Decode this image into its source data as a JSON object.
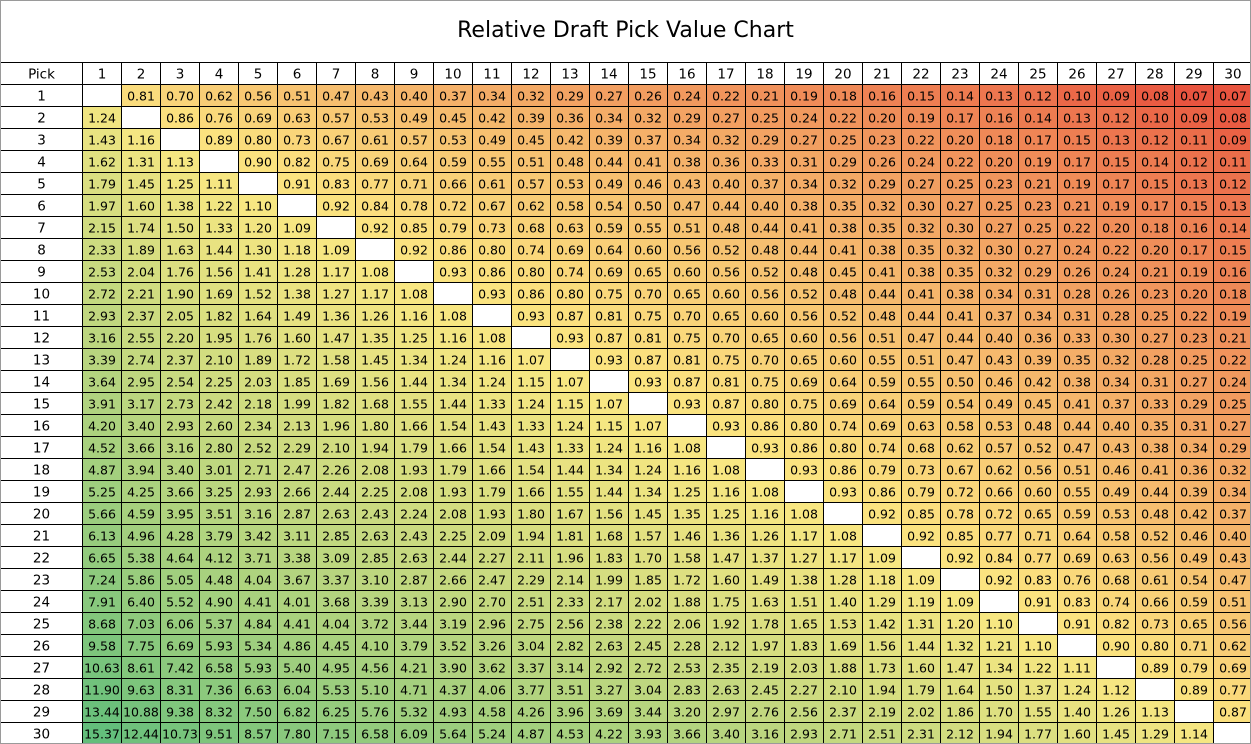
{
  "chart_data": {
    "type": "table",
    "title": "Relative Draft Pick Value Chart",
    "corner_label": "Pick",
    "columns": [
      1,
      2,
      3,
      4,
      5,
      6,
      7,
      8,
      9,
      10,
      11,
      12,
      13,
      14,
      15,
      16,
      17,
      18,
      19,
      20,
      21,
      22,
      23,
      24,
      25,
      26,
      27,
      28,
      29,
      30
    ],
    "rows": [
      1,
      2,
      3,
      4,
      5,
      6,
      7,
      8,
      9,
      10,
      11,
      12,
      13,
      14,
      15,
      16,
      17,
      18,
      19,
      20,
      21,
      22,
      23,
      24,
      25,
      26,
      27,
      28,
      29,
      30
    ],
    "diagonal": "blank",
    "color_scale": {
      "low": "#e8543f",
      "mid": "#fce882",
      "high": "#63be7b",
      "mid_value": 1.0
    },
    "values": [
      [
        null,
        "0.81",
        "0.70",
        "0.62",
        "0.56",
        "0.51",
        "0.47",
        "0.43",
        "0.40",
        "0.37",
        "0.34",
        "0.32",
        "0.29",
        "0.27",
        "0.26",
        "0.24",
        "0.22",
        "0.21",
        "0.19",
        "0.18",
        "0.16",
        "0.15",
        "0.14",
        "0.13",
        "0.12",
        "0.10",
        "0.09",
        "0.08",
        "0.07",
        "0.07"
      ],
      [
        "1.24",
        null,
        "0.86",
        "0.76",
        "0.69",
        "0.63",
        "0.57",
        "0.53",
        "0.49",
        "0.45",
        "0.42",
        "0.39",
        "0.36",
        "0.34",
        "0.32",
        "0.29",
        "0.27",
        "0.25",
        "0.24",
        "0.22",
        "0.20",
        "0.19",
        "0.17",
        "0.16",
        "0.14",
        "0.13",
        "0.12",
        "0.10",
        "0.09",
        "0.08"
      ],
      [
        "1.43",
        "1.16",
        null,
        "0.89",
        "0.80",
        "0.73",
        "0.67",
        "0.61",
        "0.57",
        "0.53",
        "0.49",
        "0.45",
        "0.42",
        "0.39",
        "0.37",
        "0.34",
        "0.32",
        "0.29",
        "0.27",
        "0.25",
        "0.23",
        "0.22",
        "0.20",
        "0.18",
        "0.17",
        "0.15",
        "0.13",
        "0.12",
        "0.11",
        "0.09"
      ],
      [
        "1.62",
        "1.31",
        "1.13",
        null,
        "0.90",
        "0.82",
        "0.75",
        "0.69",
        "0.64",
        "0.59",
        "0.55",
        "0.51",
        "0.48",
        "0.44",
        "0.41",
        "0.38",
        "0.36",
        "0.33",
        "0.31",
        "0.29",
        "0.26",
        "0.24",
        "0.22",
        "0.20",
        "0.19",
        "0.17",
        "0.15",
        "0.14",
        "0.12",
        "0.11"
      ],
      [
        "1.79",
        "1.45",
        "1.25",
        "1.11",
        null,
        "0.91",
        "0.83",
        "0.77",
        "0.71",
        "0.66",
        "0.61",
        "0.57",
        "0.53",
        "0.49",
        "0.46",
        "0.43",
        "0.40",
        "0.37",
        "0.34",
        "0.32",
        "0.29",
        "0.27",
        "0.25",
        "0.23",
        "0.21",
        "0.19",
        "0.17",
        "0.15",
        "0.13",
        "0.12"
      ],
      [
        "1.97",
        "1.60",
        "1.38",
        "1.22",
        "1.10",
        null,
        "0.92",
        "0.84",
        "0.78",
        "0.72",
        "0.67",
        "0.62",
        "0.58",
        "0.54",
        "0.50",
        "0.47",
        "0.44",
        "0.40",
        "0.38",
        "0.35",
        "0.32",
        "0.30",
        "0.27",
        "0.25",
        "0.23",
        "0.21",
        "0.19",
        "0.17",
        "0.15",
        "0.13"
      ],
      [
        "2.15",
        "1.74",
        "1.50",
        "1.33",
        "1.20",
        "1.09",
        null,
        "0.92",
        "0.85",
        "0.79",
        "0.73",
        "0.68",
        "0.63",
        "0.59",
        "0.55",
        "0.51",
        "0.48",
        "0.44",
        "0.41",
        "0.38",
        "0.35",
        "0.32",
        "0.30",
        "0.27",
        "0.25",
        "0.22",
        "0.20",
        "0.18",
        "0.16",
        "0.14"
      ],
      [
        "2.33",
        "1.89",
        "1.63",
        "1.44",
        "1.30",
        "1.18",
        "1.09",
        null,
        "0.92",
        "0.86",
        "0.80",
        "0.74",
        "0.69",
        "0.64",
        "0.60",
        "0.56",
        "0.52",
        "0.48",
        "0.44",
        "0.41",
        "0.38",
        "0.35",
        "0.32",
        "0.30",
        "0.27",
        "0.24",
        "0.22",
        "0.20",
        "0.17",
        "0.15"
      ],
      [
        "2.53",
        "2.04",
        "1.76",
        "1.56",
        "1.41",
        "1.28",
        "1.17",
        "1.08",
        null,
        "0.93",
        "0.86",
        "0.80",
        "0.74",
        "0.69",
        "0.65",
        "0.60",
        "0.56",
        "0.52",
        "0.48",
        "0.45",
        "0.41",
        "0.38",
        "0.35",
        "0.32",
        "0.29",
        "0.26",
        "0.24",
        "0.21",
        "0.19",
        "0.16"
      ],
      [
        "2.72",
        "2.21",
        "1.90",
        "1.69",
        "1.52",
        "1.38",
        "1.27",
        "1.17",
        "1.08",
        null,
        "0.93",
        "0.86",
        "0.80",
        "0.75",
        "0.70",
        "0.65",
        "0.60",
        "0.56",
        "0.52",
        "0.48",
        "0.44",
        "0.41",
        "0.38",
        "0.34",
        "0.31",
        "0.28",
        "0.26",
        "0.23",
        "0.20",
        "0.18"
      ],
      [
        "2.93",
        "2.37",
        "2.05",
        "1.82",
        "1.64",
        "1.49",
        "1.36",
        "1.26",
        "1.16",
        "1.08",
        null,
        "0.93",
        "0.87",
        "0.81",
        "0.75",
        "0.70",
        "0.65",
        "0.60",
        "0.56",
        "0.52",
        "0.48",
        "0.44",
        "0.41",
        "0.37",
        "0.34",
        "0.31",
        "0.28",
        "0.25",
        "0.22",
        "0.19"
      ],
      [
        "3.16",
        "2.55",
        "2.20",
        "1.95",
        "1.76",
        "1.60",
        "1.47",
        "1.35",
        "1.25",
        "1.16",
        "1.08",
        null,
        "0.93",
        "0.87",
        "0.81",
        "0.75",
        "0.70",
        "0.65",
        "0.60",
        "0.56",
        "0.51",
        "0.47",
        "0.44",
        "0.40",
        "0.36",
        "0.33",
        "0.30",
        "0.27",
        "0.23",
        "0.21"
      ],
      [
        "3.39",
        "2.74",
        "2.37",
        "2.10",
        "1.89",
        "1.72",
        "1.58",
        "1.45",
        "1.34",
        "1.24",
        "1.16",
        "1.07",
        null,
        "0.93",
        "0.87",
        "0.81",
        "0.75",
        "0.70",
        "0.65",
        "0.60",
        "0.55",
        "0.51",
        "0.47",
        "0.43",
        "0.39",
        "0.35",
        "0.32",
        "0.28",
        "0.25",
        "0.22"
      ],
      [
        "3.64",
        "2.95",
        "2.54",
        "2.25",
        "2.03",
        "1.85",
        "1.69",
        "1.56",
        "1.44",
        "1.34",
        "1.24",
        "1.15",
        "1.07",
        null,
        "0.93",
        "0.87",
        "0.81",
        "0.75",
        "0.69",
        "0.64",
        "0.59",
        "0.55",
        "0.50",
        "0.46",
        "0.42",
        "0.38",
        "0.34",
        "0.31",
        "0.27",
        "0.24"
      ],
      [
        "3.91",
        "3.17",
        "2.73",
        "2.42",
        "2.18",
        "1.99",
        "1.82",
        "1.68",
        "1.55",
        "1.44",
        "1.33",
        "1.24",
        "1.15",
        "1.07",
        null,
        "0.93",
        "0.87",
        "0.80",
        "0.75",
        "0.69",
        "0.64",
        "0.59",
        "0.54",
        "0.49",
        "0.45",
        "0.41",
        "0.37",
        "0.33",
        "0.29",
        "0.25"
      ],
      [
        "4.20",
        "3.40",
        "2.93",
        "2.60",
        "2.34",
        "2.13",
        "1.96",
        "1.80",
        "1.66",
        "1.54",
        "1.43",
        "1.33",
        "1.24",
        "1.15",
        "1.07",
        null,
        "0.93",
        "0.86",
        "0.80",
        "0.74",
        "0.69",
        "0.63",
        "0.58",
        "0.53",
        "0.48",
        "0.44",
        "0.40",
        "0.35",
        "0.31",
        "0.27"
      ],
      [
        "4.52",
        "3.66",
        "3.16",
        "2.80",
        "2.52",
        "2.29",
        "2.10",
        "1.94",
        "1.79",
        "1.66",
        "1.54",
        "1.43",
        "1.33",
        "1.24",
        "1.16",
        "1.08",
        null,
        "0.93",
        "0.86",
        "0.80",
        "0.74",
        "0.68",
        "0.62",
        "0.57",
        "0.52",
        "0.47",
        "0.43",
        "0.38",
        "0.34",
        "0.29"
      ],
      [
        "4.87",
        "3.94",
        "3.40",
        "3.01",
        "2.71",
        "2.47",
        "2.26",
        "2.08",
        "1.93",
        "1.79",
        "1.66",
        "1.54",
        "1.44",
        "1.34",
        "1.24",
        "1.16",
        "1.08",
        null,
        "0.93",
        "0.86",
        "0.79",
        "0.73",
        "0.67",
        "0.62",
        "0.56",
        "0.51",
        "0.46",
        "0.41",
        "0.36",
        "0.32"
      ],
      [
        "5.25",
        "4.25",
        "3.66",
        "3.25",
        "2.93",
        "2.66",
        "2.44",
        "2.25",
        "2.08",
        "1.93",
        "1.79",
        "1.66",
        "1.55",
        "1.44",
        "1.34",
        "1.25",
        "1.16",
        "1.08",
        null,
        "0.93",
        "0.86",
        "0.79",
        "0.72",
        "0.66",
        "0.60",
        "0.55",
        "0.49",
        "0.44",
        "0.39",
        "0.34"
      ],
      [
        "5.66",
        "4.59",
        "3.95",
        "3.51",
        "3.16",
        "2.87",
        "2.63",
        "2.43",
        "2.24",
        "2.08",
        "1.93",
        "1.80",
        "1.67",
        "1.56",
        "1.45",
        "1.35",
        "1.25",
        "1.16",
        "1.08",
        null,
        "0.92",
        "0.85",
        "0.78",
        "0.72",
        "0.65",
        "0.59",
        "0.53",
        "0.48",
        "0.42",
        "0.37"
      ],
      [
        "6.13",
        "4.96",
        "4.28",
        "3.79",
        "3.42",
        "3.11",
        "2.85",
        "2.63",
        "2.43",
        "2.25",
        "2.09",
        "1.94",
        "1.81",
        "1.68",
        "1.57",
        "1.46",
        "1.36",
        "1.26",
        "1.17",
        "1.08",
        null,
        "0.92",
        "0.85",
        "0.77",
        "0.71",
        "0.64",
        "0.58",
        "0.52",
        "0.46",
        "0.40"
      ],
      [
        "6.65",
        "5.38",
        "4.64",
        "4.12",
        "3.71",
        "3.38",
        "3.09",
        "2.85",
        "2.63",
        "2.44",
        "2.27",
        "2.11",
        "1.96",
        "1.83",
        "1.70",
        "1.58",
        "1.47",
        "1.37",
        "1.27",
        "1.17",
        "1.09",
        null,
        "0.92",
        "0.84",
        "0.77",
        "0.69",
        "0.63",
        "0.56",
        "0.49",
        "0.43"
      ],
      [
        "7.24",
        "5.86",
        "5.05",
        "4.48",
        "4.04",
        "3.67",
        "3.37",
        "3.10",
        "2.87",
        "2.66",
        "2.47",
        "2.29",
        "2.14",
        "1.99",
        "1.85",
        "1.72",
        "1.60",
        "1.49",
        "1.38",
        "1.28",
        "1.18",
        "1.09",
        null,
        "0.92",
        "0.83",
        "0.76",
        "0.68",
        "0.61",
        "0.54",
        "0.47"
      ],
      [
        "7.91",
        "6.40",
        "5.52",
        "4.90",
        "4.41",
        "4.01",
        "3.68",
        "3.39",
        "3.13",
        "2.90",
        "2.70",
        "2.51",
        "2.33",
        "2.17",
        "2.02",
        "1.88",
        "1.75",
        "1.63",
        "1.51",
        "1.40",
        "1.29",
        "1.19",
        "1.09",
        null,
        "0.91",
        "0.83",
        "0.74",
        "0.66",
        "0.59",
        "0.51"
      ],
      [
        "8.68",
        "7.03",
        "6.06",
        "5.37",
        "4.84",
        "4.41",
        "4.04",
        "3.72",
        "3.44",
        "3.19",
        "2.96",
        "2.75",
        "2.56",
        "2.38",
        "2.22",
        "2.06",
        "1.92",
        "1.78",
        "1.65",
        "1.53",
        "1.42",
        "1.31",
        "1.20",
        "1.10",
        null,
        "0.91",
        "0.82",
        "0.73",
        "0.65",
        "0.56"
      ],
      [
        "9.58",
        "7.75",
        "6.69",
        "5.93",
        "5.34",
        "4.86",
        "4.45",
        "4.10",
        "3.79",
        "3.52",
        "3.26",
        "3.04",
        "2.82",
        "2.63",
        "2.45",
        "2.28",
        "2.12",
        "1.97",
        "1.83",
        "1.69",
        "1.56",
        "1.44",
        "1.32",
        "1.21",
        "1.10",
        null,
        "0.90",
        "0.80",
        "0.71",
        "0.62"
      ],
      [
        "10.63",
        "8.61",
        "7.42",
        "6.58",
        "5.93",
        "5.40",
        "4.95",
        "4.56",
        "4.21",
        "3.90",
        "3.62",
        "3.37",
        "3.14",
        "2.92",
        "2.72",
        "2.53",
        "2.35",
        "2.19",
        "2.03",
        "1.88",
        "1.73",
        "1.60",
        "1.47",
        "1.34",
        "1.22",
        "1.11",
        null,
        "0.89",
        "0.79",
        "0.69"
      ],
      [
        "11.90",
        "9.63",
        "8.31",
        "7.36",
        "6.63",
        "6.04",
        "5.53",
        "5.10",
        "4.71",
        "4.37",
        "4.06",
        "3.77",
        "3.51",
        "3.27",
        "3.04",
        "2.83",
        "2.63",
        "2.45",
        "2.27",
        "2.10",
        "1.94",
        "1.79",
        "1.64",
        "1.50",
        "1.37",
        "1.24",
        "1.12",
        null,
        "0.89",
        "0.77"
      ],
      [
        "13.44",
        "10.88",
        "9.38",
        "8.32",
        "7.50",
        "6.82",
        "6.25",
        "5.76",
        "5.32",
        "4.93",
        "4.58",
        "4.26",
        "3.96",
        "3.69",
        "3.44",
        "3.20",
        "2.97",
        "2.76",
        "2.56",
        "2.37",
        "2.19",
        "2.02",
        "1.86",
        "1.70",
        "1.55",
        "1.40",
        "1.26",
        "1.13",
        null,
        "0.87"
      ],
      [
        "15.37",
        "12.44",
        "10.73",
        "9.51",
        "8.57",
        "7.80",
        "7.15",
        "6.58",
        "6.09",
        "5.64",
        "5.24",
        "4.87",
        "4.53",
        "4.22",
        "3.93",
        "3.66",
        "3.40",
        "3.16",
        "2.93",
        "2.71",
        "2.51",
        "2.31",
        "2.12",
        "1.94",
        "1.77",
        "1.60",
        "1.45",
        "1.29",
        "1.14",
        null
      ]
    ]
  }
}
